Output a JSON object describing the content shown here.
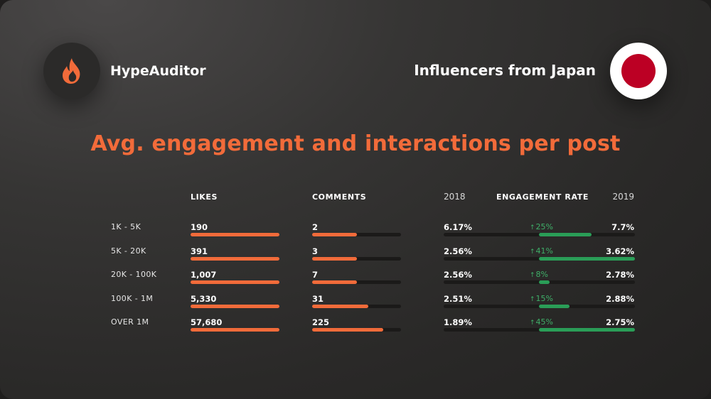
{
  "brand": {
    "name": "HypeAuditor",
    "icon": "flame-icon",
    "accent": "#f26b3a"
  },
  "region": {
    "label": "Influencers from Japan",
    "icon": "japan-flag-icon",
    "flag_color": "#bc0024"
  },
  "title": "Avg. engagement and interactions per post",
  "colors": {
    "orange": "#f26b3a",
    "green": "#2a9d57",
    "green_text": "#3fae68",
    "track": "#1b1a19"
  },
  "headers": {
    "likes": "LIKES",
    "comments": "COMMENTS",
    "year_2018": "2018",
    "engagement_rate": "ENGAGEMENT RATE",
    "year_2019": "2019"
  },
  "chart_data": {
    "type": "table",
    "title": "Avg. engagement and interactions per post",
    "columns": [
      "",
      "LIKES",
      "COMMENTS",
      "2018",
      "ENGAGEMENT RATE",
      "2019"
    ],
    "rows": [
      {
        "tier": "1K - 5K",
        "likes": "190",
        "comments": "2",
        "er_2018": "6.17%",
        "change": "25%",
        "er_2019": "7.7%",
        "likes_bar": 1.0,
        "comments_bar": 0.5,
        "change_bar": 0.55
      },
      {
        "tier": "5K - 20K",
        "likes": "391",
        "comments": "3",
        "er_2018": "2.56%",
        "change": "41%",
        "er_2019": "3.62%",
        "likes_bar": 1.0,
        "comments_bar": 0.5,
        "change_bar": 1.0
      },
      {
        "tier": "20K - 100K",
        "likes": "1,007",
        "comments": "7",
        "er_2018": "2.56%",
        "change": "8%",
        "er_2019": "2.78%",
        "likes_bar": 1.0,
        "comments_bar": 0.5,
        "change_bar": 0.11
      },
      {
        "tier": "100K - 1M",
        "likes": "5,330",
        "comments": "31",
        "er_2018": "2.51%",
        "change": "15%",
        "er_2019": "2.88%",
        "likes_bar": 1.0,
        "comments_bar": 0.63,
        "change_bar": 0.32
      },
      {
        "tier": "OVER 1M",
        "likes": "57,680",
        "comments": "225",
        "er_2018": "1.89%",
        "change": "45%",
        "er_2019": "2.75%",
        "likes_bar": 1.0,
        "comments_bar": 0.8,
        "change_bar": 1.0
      }
    ]
  }
}
